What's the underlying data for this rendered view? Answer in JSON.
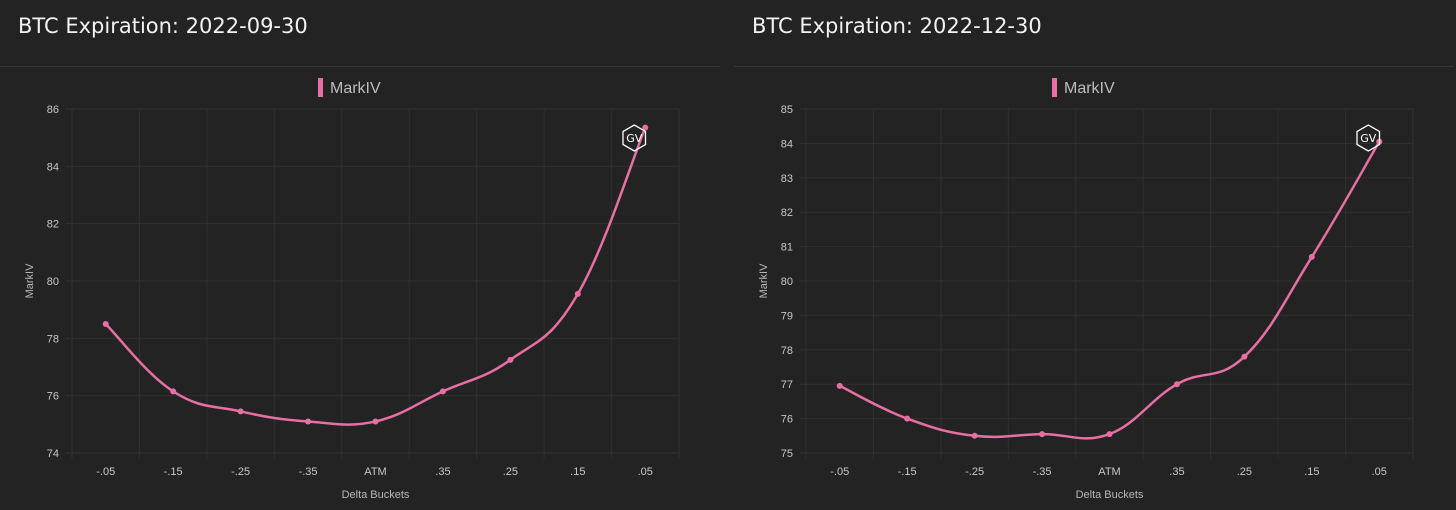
{
  "chart_data": [
    {
      "type": "line",
      "title": "BTC Expiration: 2022-09-30",
      "xlabel": "Delta Buckets",
      "ylabel": "MarkIV",
      "categories": [
        "-.05",
        "-.15",
        "-.25",
        "-.35",
        "ATM",
        ".35",
        ".25",
        ".15",
        ".05"
      ],
      "series": [
        {
          "name": "MarkIV",
          "values": [
            78.5,
            76.15,
            75.45,
            75.1,
            75.1,
            76.15,
            77.25,
            79.55,
            85.35
          ]
        }
      ],
      "ylim": [
        74,
        86
      ],
      "yticks": [
        "74",
        "76",
        "78",
        "80",
        "82",
        "84",
        "86"
      ],
      "grid": true,
      "legend": "top-center",
      "color": "#e86fa4",
      "watermark": "GV"
    },
    {
      "type": "line",
      "title": "BTC Expiration: 2022-12-30",
      "xlabel": "Delta Buckets",
      "ylabel": "MarkIV",
      "categories": [
        "-.05",
        "-.15",
        "-.25",
        "-.35",
        "ATM",
        ".35",
        ".25",
        ".15",
        ".05"
      ],
      "series": [
        {
          "name": "MarkIV",
          "values": [
            76.95,
            76.0,
            75.5,
            75.55,
            75.55,
            77.0,
            77.8,
            80.7,
            84.05
          ]
        }
      ],
      "ylim": [
        75,
        85
      ],
      "yticks": [
        "75",
        "76",
        "77",
        "78",
        "79",
        "80",
        "81",
        "82",
        "83",
        "84",
        "85"
      ],
      "grid": true,
      "legend": "top-center",
      "color": "#e86fa4",
      "watermark": "GV"
    }
  ]
}
